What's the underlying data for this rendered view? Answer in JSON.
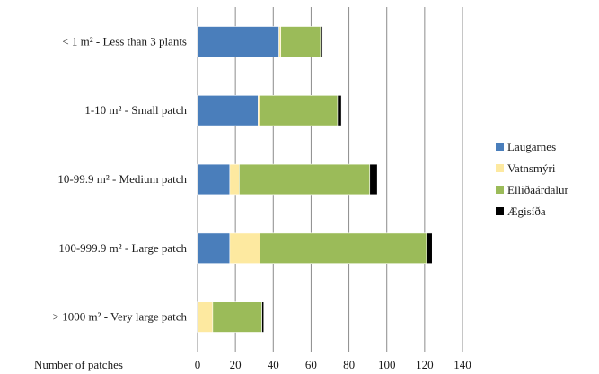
{
  "chart_data": {
    "type": "bar",
    "orientation": "horizontal",
    "stacked": true,
    "categories": [
      "< 1 m² - Less than 3 plants",
      "1-10 m² - Small patch",
      "10-99.9 m² - Medium patch",
      "100-999.9 m² - Large patch",
      "> 1000 m² - Very large patch"
    ],
    "series": [
      {
        "name": "Laugarnes",
        "color": "#4a7ebb",
        "values": [
          43,
          32,
          17,
          17,
          0
        ]
      },
      {
        "name": "Vatnsmýri",
        "color": "#fde9a0",
        "values": [
          1,
          1,
          5,
          16,
          8
        ]
      },
      {
        "name": "Elliðaárdalur",
        "color": "#9bbb59",
        "values": [
          21,
          41,
          69,
          88,
          26
        ]
      },
      {
        "name": "Ægisíða",
        "color": "#000000",
        "values": [
          1,
          2,
          4,
          3,
          1
        ]
      }
    ],
    "xlim": [
      0,
      140
    ],
    "xticks": [
      "0",
      "20",
      "40",
      "60",
      "80",
      "100",
      "120",
      "140"
    ],
    "xlabel": "Number of patches",
    "grid": true,
    "legend_position": "right"
  }
}
